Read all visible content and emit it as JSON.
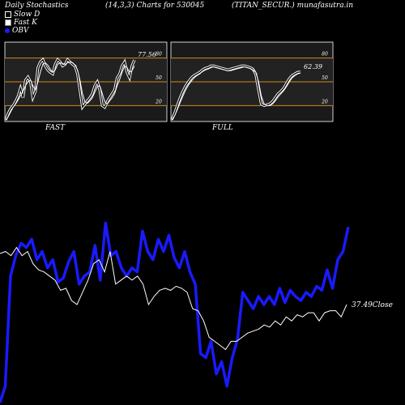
{
  "header": {
    "left": "Daily Stochastics",
    "center": "(14,3,3) Charts for 530045",
    "right": "(TITAN_SECUR.) munafasutra.in"
  },
  "legend": {
    "items": [
      {
        "label": "Slow  D",
        "color": "#000000"
      },
      {
        "label": "Fast K",
        "color": "#ffffff"
      },
      {
        "label": "OBV",
        "color": "#1a1aff"
      }
    ]
  },
  "chart_data": [
    {
      "type": "line",
      "title": "FAST",
      "ylim": [
        0,
        100
      ],
      "levels": [
        20,
        50,
        80
      ],
      "tick_labels": [
        "80",
        "50",
        "20"
      ],
      "last_value_label": "77.56",
      "series": [
        {
          "name": "Fast K",
          "values": [
            2,
            10,
            16,
            20,
            25,
            32,
            42,
            30,
            52,
            56,
            50,
            30,
            38,
            68,
            75,
            78,
            70,
            65,
            62,
            60,
            72,
            78,
            75,
            70,
            72,
            78,
            75,
            72,
            70,
            60,
            40,
            18,
            22,
            26,
            30,
            35,
            45,
            50,
            40,
            20,
            18,
            25,
            30,
            35,
            40,
            55,
            60,
            70,
            75,
            62,
            55,
            70,
            77.56
          ]
        },
        {
          "name": "Slow D",
          "values": [
            2,
            6,
            12,
            18,
            22,
            27,
            33,
            38,
            45,
            50,
            52,
            45,
            40,
            50,
            62,
            72,
            74,
            71,
            66,
            62,
            65,
            72,
            74,
            73,
            72,
            74,
            75,
            74,
            71,
            65,
            52,
            35,
            25,
            23,
            26,
            30,
            37,
            44,
            45,
            35,
            25,
            22,
            26,
            30,
            35,
            45,
            53,
            62,
            70,
            68,
            62,
            64,
            70
          ]
        }
      ]
    },
    {
      "type": "line",
      "title": "FULL",
      "ylim": [
        0,
        100
      ],
      "levels": [
        20,
        50,
        80
      ],
      "tick_labels": [
        "80",
        "50",
        "20"
      ],
      "last_value_label": "62.39",
      "series": [
        {
          "name": "Fast K",
          "values": [
            2,
            10,
            20,
            30,
            38,
            45,
            50,
            55,
            58,
            60,
            62,
            65,
            67,
            68,
            70,
            70,
            69,
            68,
            67,
            66,
            65,
            66,
            67,
            68,
            69,
            70,
            70,
            69,
            68,
            66,
            60,
            40,
            22,
            20,
            21,
            22,
            25,
            30,
            35,
            38,
            42,
            48,
            54,
            58,
            60,
            62,
            62.39
          ]
        },
        {
          "name": "Slow D",
          "values": [
            2,
            7,
            15,
            24,
            32,
            40,
            46,
            51,
            55,
            58,
            60,
            63,
            65,
            66,
            68,
            69,
            68,
            67,
            66,
            65,
            64,
            64,
            65,
            66,
            67,
            68,
            69,
            68,
            67,
            65,
            62,
            50,
            32,
            22,
            20,
            20,
            22,
            26,
            31,
            35,
            39,
            44,
            50,
            55,
            58,
            60,
            61
          ]
        }
      ]
    },
    {
      "type": "line",
      "title": "",
      "ylim": [
        0,
        100
      ],
      "last_value_label": "37.49Close",
      "series": [
        {
          "name": "OBV",
          "values": [
            0,
            8,
            62,
            72,
            78,
            76,
            80,
            70,
            74,
            66,
            70,
            59,
            61,
            69,
            74,
            58,
            62,
            64,
            77,
            60,
            88,
            72,
            74,
            66,
            62,
            66,
            64,
            84,
            74,
            70,
            80,
            74,
            82,
            71,
            66,
            74,
            64,
            58,
            24,
            22,
            30,
            14,
            20,
            8,
            22,
            31,
            54,
            50,
            46,
            52,
            48,
            52,
            48,
            56,
            49,
            55,
            52,
            50,
            54,
            52,
            57,
            55,
            65,
            56,
            70,
            74,
            86
          ]
        },
        {
          "name": "Close",
          "values": [
            73,
            74,
            72,
            76,
            72,
            74,
            68,
            65,
            64,
            62,
            60,
            55,
            56,
            50,
            48,
            54,
            60,
            68,
            70,
            64,
            74,
            58,
            60,
            62,
            60,
            62,
            58,
            48,
            52,
            55,
            56,
            55,
            57,
            56,
            54,
            46,
            45,
            40,
            32,
            30,
            28,
            26,
            30,
            30,
            32,
            34,
            35,
            36,
            38,
            37,
            40,
            38,
            42,
            40,
            43,
            42,
            44,
            44,
            40,
            44,
            45,
            45,
            42,
            48
          ]
        }
      ]
    }
  ],
  "colors": {
    "background": "#000000",
    "panel_bg": "#1a1a1a",
    "level_line": "#cc8a1c",
    "fast_line": "#ffffff",
    "obv_line": "#1a1aff",
    "close_line": "#ffffff"
  }
}
